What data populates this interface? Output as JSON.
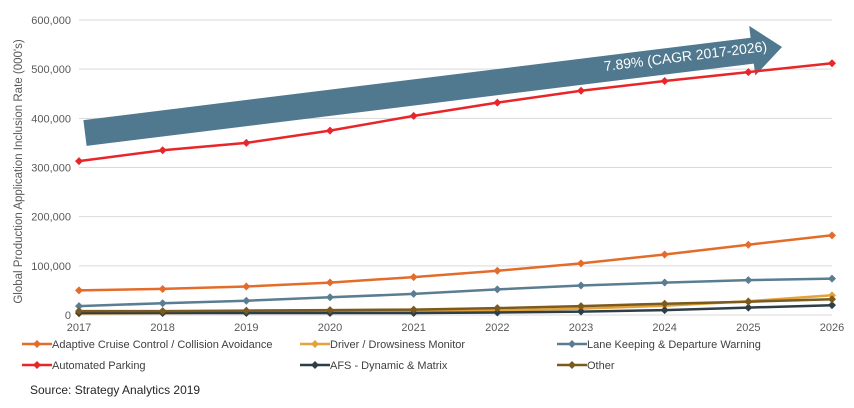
{
  "chart_data": {
    "type": "line",
    "title": "",
    "ylabel": "Global Production Application Inclusion Rate (000's)",
    "xlabel": "",
    "x": [
      "2017",
      "2018",
      "2019",
      "2020",
      "2021",
      "2022",
      "2023",
      "2024",
      "2025",
      "2026"
    ],
    "ylim": [
      0,
      600000
    ],
    "yticks": [
      "0",
      "100,000",
      "200,000",
      "300,000",
      "400,000",
      "500,000",
      "600,000"
    ],
    "ytick_values": [
      0,
      100000,
      200000,
      300000,
      400000,
      500000,
      600000
    ],
    "grid": true,
    "legend_position": "bottom",
    "series": [
      {
        "name": "Adaptive Cruise Control / Collision Avoidance",
        "color": "#E36C2B",
        "values": [
          50000,
          53000,
          58000,
          66000,
          77000,
          90000,
          105000,
          123000,
          143000,
          162000
        ]
      },
      {
        "name": "Driver / Drowsiness Monitor",
        "color": "#E3A33A",
        "values": [
          3000,
          4000,
          5000,
          6000,
          7000,
          9000,
          13000,
          19000,
          28000,
          40000
        ]
      },
      {
        "name": "Lane Keeping & Departure Warning",
        "color": "#5A7D92",
        "values": [
          18000,
          24000,
          29000,
          36000,
          43000,
          52000,
          60000,
          66000,
          71000,
          74000
        ]
      },
      {
        "name": "Automated Parking",
        "color": "#E8262A",
        "values": [
          313000,
          335000,
          350000,
          375000,
          405000,
          432000,
          456000,
          476000,
          494000,
          512000
        ]
      },
      {
        "name": "AFS - Dynamic & Matrix",
        "color": "#2E3E47",
        "values": [
          4000,
          4000,
          4000,
          4000,
          4000,
          5000,
          7000,
          10000,
          15000,
          20000
        ]
      },
      {
        "name": "Other",
        "color": "#7A5A1E",
        "values": [
          8000,
          8000,
          9000,
          10000,
          11000,
          14000,
          18000,
          23000,
          27000,
          32000
        ]
      }
    ],
    "annotation": {
      "text": "7.89% (CAGR 2017-2026)",
      "color": "#50788E"
    }
  },
  "source_text": "Source: Strategy Analytics 2019"
}
